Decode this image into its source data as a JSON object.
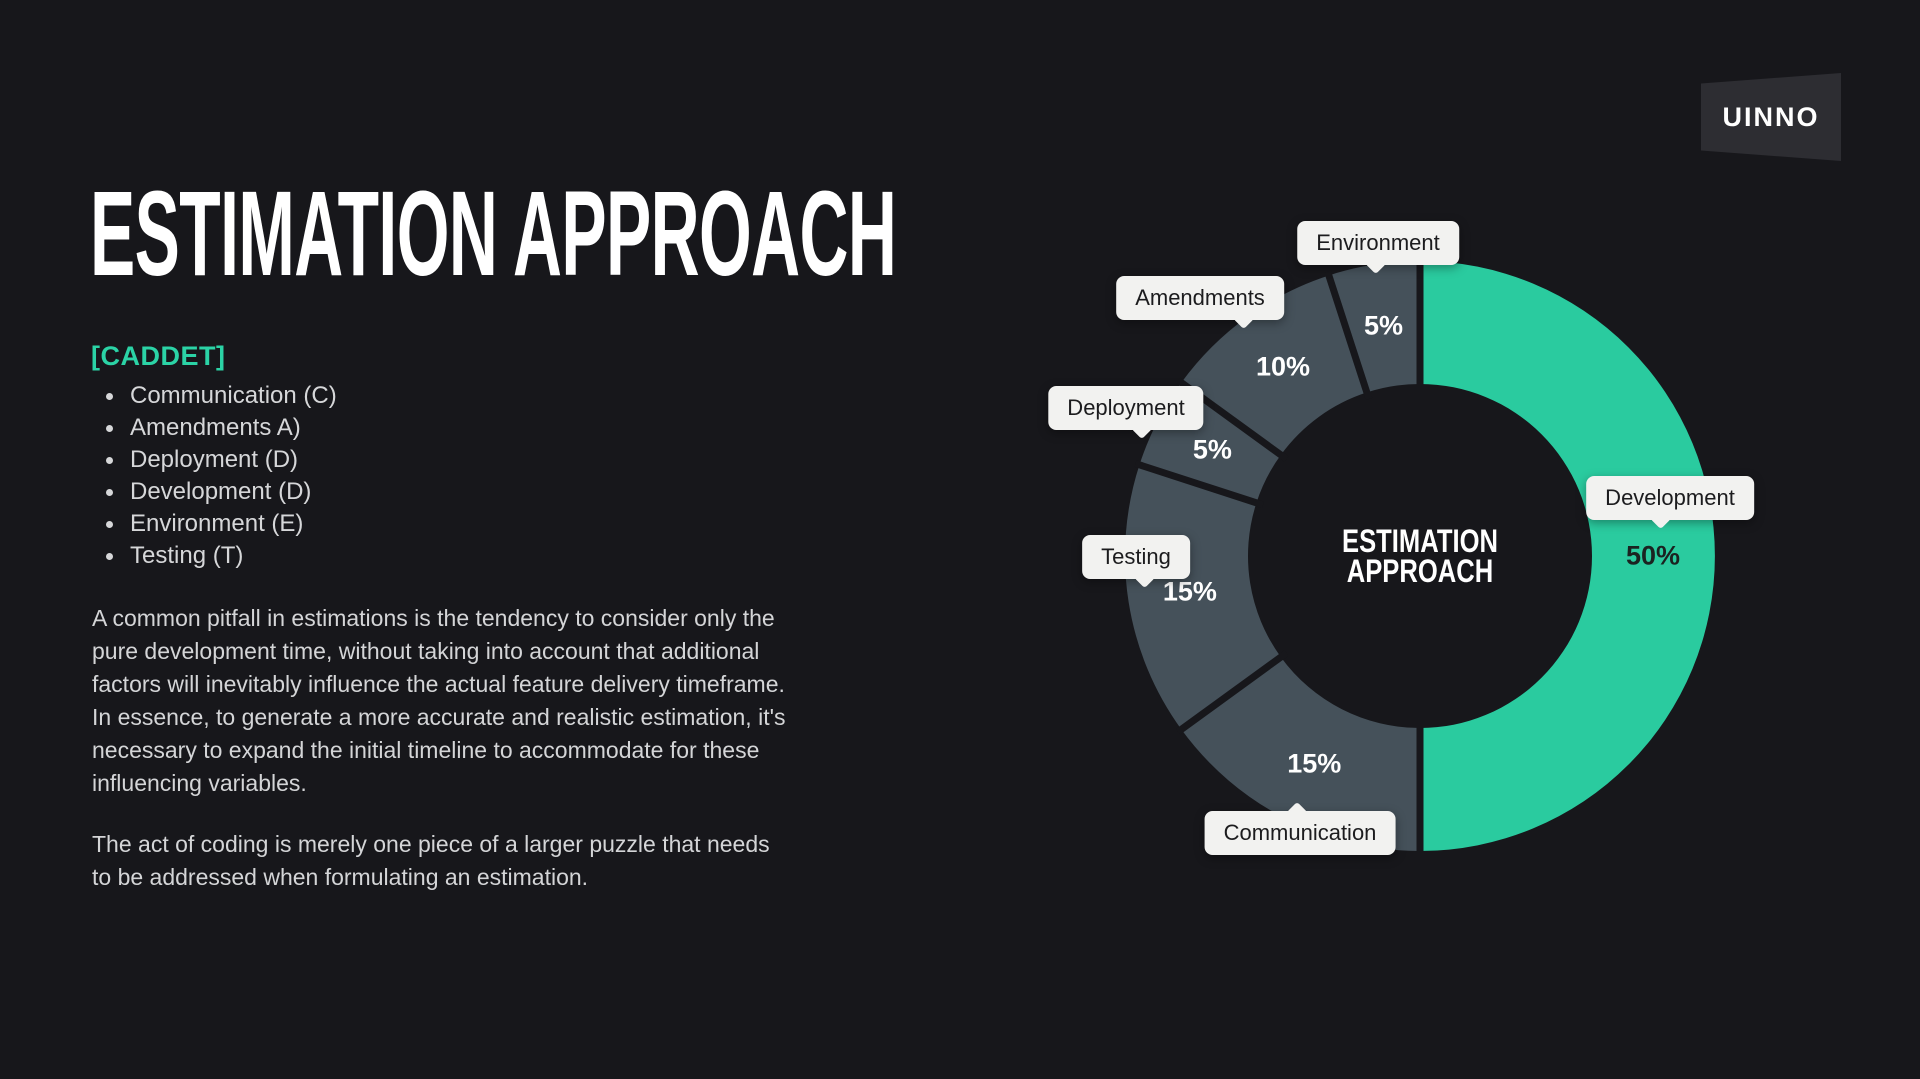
{
  "slide": {
    "title": "ESTIMATION APPROACH",
    "acronym_label": "[CADDET]",
    "bullets": [
      "Communication (C)",
      "Amendments A)",
      "Deployment (D)",
      "Development (D)",
      "Environment (E)",
      "Testing (T)"
    ],
    "paragraphs": [
      [
        "A common pitfall in estimations is the tendency to consider only the",
        "pure development time, without taking into account that additional",
        "factors will inevitably influence the actual feature delivery timeframe.",
        "In essence, to generate a more accurate and realistic estimation, it's",
        "necessary to expand the initial timeline to accommodate for these",
        "influencing variables."
      ],
      [
        "The act of coding is merely one piece of a larger puzzle that needs",
        "to be addressed when formulating an estimation."
      ]
    ],
    "logo_text": "UINNO"
  },
  "colors": {
    "background": "#17171b",
    "accent_teal": "#2acb9f",
    "slice_gray": "#45515a",
    "tooltip_bg": "#f2f2f0",
    "tooltip_text": "#1c1c1e",
    "body_text": "#d4d5d7",
    "title_white": "#ffffff",
    "pct_dark_text": "#1b2321"
  },
  "chart_data": {
    "type": "pie",
    "donut": true,
    "title": "ESTIMATION APPROACH",
    "center_label_lines": [
      "ESTIMATION",
      "APPROACH"
    ],
    "order": "clockwise-from-12-oclock",
    "legend_position": "callout-tooltips",
    "grid": false,
    "segments": [
      {
        "label": "Development",
        "value": 50,
        "pct_label": "50%",
        "emphasis": true
      },
      {
        "label": "Communication",
        "value": 15,
        "pct_label": "15%",
        "emphasis": false
      },
      {
        "label": "Testing",
        "value": 15,
        "pct_label": "15%",
        "emphasis": false
      },
      {
        "label": "Deployment",
        "value": 5,
        "pct_label": "5%",
        "emphasis": false
      },
      {
        "label": "Amendments",
        "value": 10,
        "pct_label": "10%",
        "emphasis": false
      },
      {
        "label": "Environment",
        "value": 5,
        "pct_label": "5%",
        "emphasis": false
      }
    ]
  }
}
